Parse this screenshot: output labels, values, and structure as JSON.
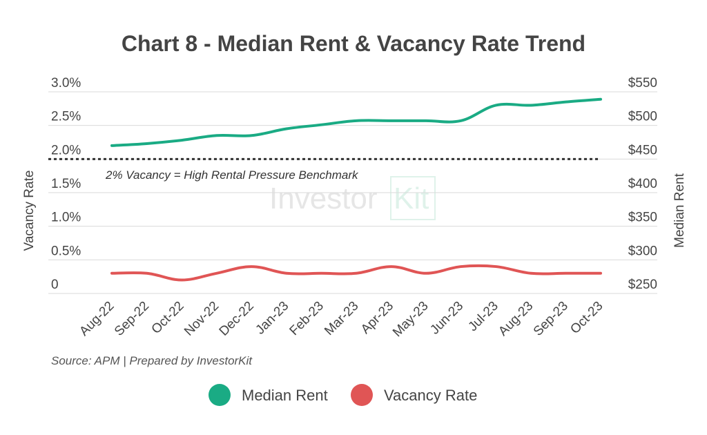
{
  "chart_data": {
    "type": "line",
    "title": "Chart 8 - Median Rent & Vacancy Rate Trend",
    "categories": [
      "Aug-22",
      "Sep-22",
      "Oct-22",
      "Nov-22",
      "Dec-22",
      "Jan-23",
      "Feb-23",
      "Mar-23",
      "Apr-23",
      "May-23",
      "Jun-23",
      "Jul-23",
      "Aug-23",
      "Sep-23",
      "Oct-23"
    ],
    "y_left": {
      "label": "Vacancy Rate",
      "ticks": [
        "3.0%",
        "2.5%",
        "2.0%",
        "1.5%",
        "1.0%",
        "0.5%",
        "0"
      ],
      "range": [
        0,
        3.0
      ]
    },
    "y_right": {
      "label": "Median Rent",
      "ticks": [
        "$550",
        "$500",
        "$450",
        "$400",
        "$350",
        "$300",
        "$250"
      ],
      "range": [
        250,
        550
      ]
    },
    "series": [
      {
        "name": "Median Rent",
        "axis": "right",
        "color": "#1aab84",
        "values": [
          470,
          473,
          478,
          485,
          485,
          495,
          501,
          507,
          507,
          507,
          507,
          530,
          530,
          535,
          539
        ]
      },
      {
        "name": "Vacancy Rate",
        "axis": "left",
        "color": "#e05555",
        "values": [
          0.3,
          0.3,
          0.2,
          0.3,
          0.4,
          0.3,
          0.3,
          0.3,
          0.4,
          0.3,
          0.4,
          0.4,
          0.3,
          0.3,
          0.3
        ]
      }
    ],
    "benchmark": {
      "value": 2.0,
      "axis": "left",
      "label": "2% Vacancy = High Rental Pressure Benchmark"
    },
    "grid": true,
    "legend_placement": "bottom",
    "source": "Source: APM | Prepared by InvestorKit",
    "watermark": "Investor Kit"
  }
}
